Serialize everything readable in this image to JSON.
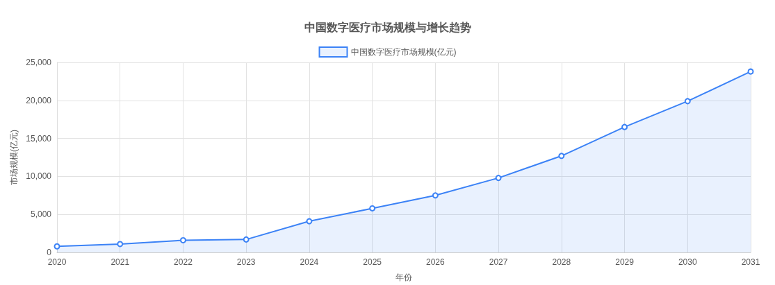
{
  "chart_data": {
    "type": "area",
    "title": "中国数字医疗市场规模与增长趋势",
    "xlabel": "年份",
    "ylabel": "市场规模(亿元)",
    "categories": [
      "2020",
      "2021",
      "2022",
      "2023",
      "2024",
      "2025",
      "2026",
      "2027",
      "2028",
      "2029",
      "2030",
      "2031"
    ],
    "series": [
      {
        "name": "中国数字医疗市场规模(亿元)",
        "color": "#3b82f6",
        "values": [
          800,
          1100,
          1600,
          1700,
          4100,
          5800,
          7500,
          9800,
          12700,
          16500,
          19900,
          23800
        ]
      }
    ],
    "ylim": [
      0,
      25000
    ],
    "yticks": [
      0,
      {
        "value": 5000,
        "label": "5,000"
      },
      {
        "value": 10000,
        "label": "10,000"
      },
      {
        "value": 15000,
        "label": "15,000"
      },
      {
        "value": 20000,
        "label": "20,000"
      },
      {
        "value": 25000,
        "label": "25,000"
      }
    ],
    "grid": true,
    "legend": "top",
    "marker": "circle"
  }
}
